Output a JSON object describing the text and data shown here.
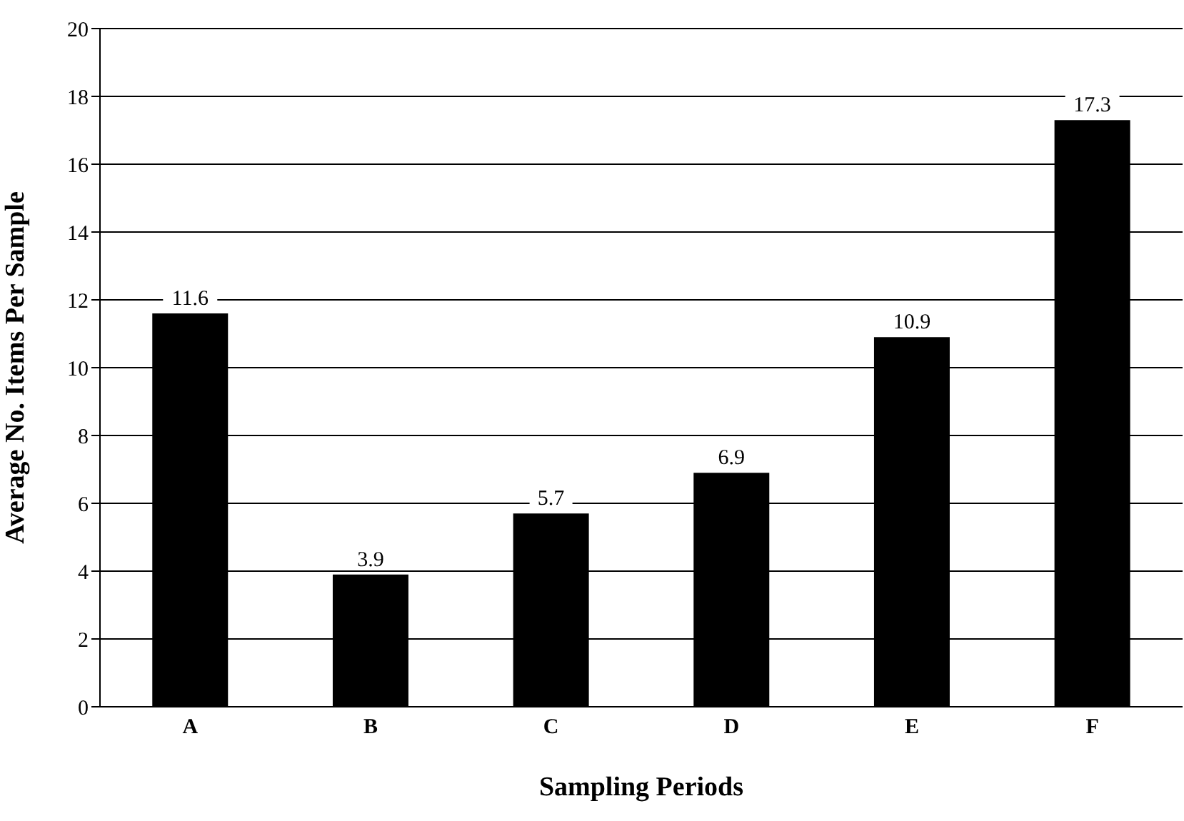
{
  "chart_data": {
    "type": "bar",
    "xlabel": "Sampling Periods",
    "ylabel": "Average No. Items Per Sample",
    "categories": [
      "A",
      "B",
      "C",
      "D",
      "E",
      "F"
    ],
    "values": [
      11.6,
      3.9,
      5.7,
      6.9,
      10.9,
      17.3
    ],
    "color": "#000000",
    "ylim": [
      0,
      20
    ],
    "yticks": [
      0,
      2,
      4,
      6,
      8,
      10,
      12,
      14,
      16,
      18,
      20
    ],
    "grid": "y",
    "data_labels": true
  }
}
